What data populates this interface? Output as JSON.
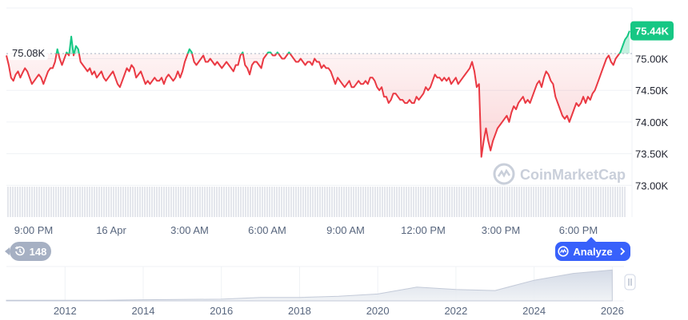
{
  "chart_data": {
    "type": "area",
    "y_axis": {
      "ticks": [
        "75.00K",
        "74.50K",
        "74.00K",
        "73.50K",
        "73.00K"
      ],
      "tick_values": [
        75000,
        74500,
        74000,
        73500,
        73000
      ],
      "range": [
        72500,
        75800
      ]
    },
    "x_axis": {
      "ticks": [
        "9:00 PM",
        "16 Apr",
        "3:00 AM",
        "6:00 AM",
        "9:00 AM",
        "12:00 PM",
        "3:00 PM",
        "6:00 PM"
      ]
    },
    "reference_value": 75080,
    "reference_label": "75.08K",
    "current_value_label": "75.44K",
    "colors": {
      "above": "#16c784",
      "below": "#ea3943",
      "current_badge": "#16c784",
      "reference_line": "#a6b0c3"
    },
    "series": [
      {
        "values": [
          75050,
          74900,
          74700,
          74650,
          74750,
          74800,
          74700,
          74780,
          74850,
          74800,
          74700,
          74600,
          74650,
          74700,
          74750,
          74700,
          74600,
          74700,
          74800,
          74850,
          74850,
          74950,
          75150,
          75000,
          74900,
          75000,
          75100,
          75050,
          75350,
          75050,
          75200,
          75150,
          74950,
          74900,
          74850,
          74800,
          74850,
          74750,
          74800,
          74700,
          74750,
          74800,
          74700,
          74650,
          74700,
          74750,
          74800,
          74700,
          74600,
          74550,
          74650,
          74750,
          74850,
          74800,
          74900,
          74850,
          74700,
          74750,
          74800,
          74700,
          74600,
          74650,
          74600,
          74650,
          74700,
          74650,
          74650,
          74700,
          74600,
          74700,
          74750,
          74700,
          74650,
          74700,
          74800,
          74700,
          74800,
          74950,
          75050,
          75150,
          75100,
          74950,
          74900,
          74950,
          75000,
          75050,
          74950,
          74950,
          75000,
          74950,
          74900,
          74950,
          74900,
          74850,
          74900,
          74950,
          74900,
          74850,
          74800,
          74900,
          74900,
          75050,
          75100,
          74900,
          74850,
          74750,
          74900,
          74950,
          74950,
          74900,
          74850,
          75000,
          75050,
          75100,
          75100,
          75050,
          75050,
          75100,
          75050,
          75000,
          75000,
          75050,
          75100,
          75050,
          75000,
          74950,
          74950,
          75000,
          74950,
          74900,
          74950,
          74950,
          74900,
          75000,
          74950,
          74950,
          74850,
          74900,
          74850,
          74850,
          74800,
          74700,
          74600,
          74700,
          74650,
          74600,
          74550,
          74600,
          74650,
          74550,
          74550,
          74600,
          74650,
          74600,
          74600,
          74650,
          74600,
          74700,
          74700,
          74650,
          74550,
          74500,
          74550,
          74400,
          74400,
          74300,
          74350,
          74450,
          74450,
          74400,
          74350,
          74350,
          74300,
          74300,
          74350,
          74300,
          74300,
          74400,
          74350,
          74400,
          74450,
          74550,
          74500,
          74550,
          74650,
          74750,
          74700,
          74700,
          74650,
          74700,
          74650,
          74700,
          74600,
          74650,
          74700,
          74600,
          74650,
          74700,
          74750,
          74800,
          74850,
          74950,
          74800,
          74550,
          74600,
          73450,
          73700,
          73900,
          73700,
          73550,
          73700,
          73800,
          73900,
          73950,
          74000,
          74050,
          74100,
          74000,
          74150,
          74250,
          74200,
          74300,
          74350,
          74400,
          74300,
          74350,
          74300,
          74400,
          74500,
          74600,
          74650,
          74550,
          74700,
          74800,
          74750,
          74650,
          74600,
          74400,
          74300,
          74200,
          74100,
          74050,
          74100,
          74000,
          74100,
          74200,
          74300,
          74250,
          74300,
          74400,
          74300,
          74400,
          74350,
          74450,
          74500,
          74600,
          74700,
          74800,
          74900,
          75000,
          75050,
          74950,
          74900,
          75000,
          75050,
          75100,
          75200,
          75300,
          75350,
          75440
        ]
      }
    ]
  },
  "watermark": {
    "text": "CoinMarketCap",
    "icon": "coinmarketcap-logo-icon"
  },
  "navigator": {
    "ticks": [
      "2012",
      "2014",
      "2016",
      "2018",
      "2020",
      "2022",
      "2024",
      "2026"
    ],
    "tick_values": [
      2012,
      2014,
      2016,
      2018,
      2020,
      2022,
      2024,
      2026
    ],
    "range": [
      2010.5,
      2026.3
    ],
    "trend": [
      [
        2010.5,
        0.5
      ],
      [
        2013,
        0.5
      ],
      [
        2014,
        1
      ],
      [
        2016,
        1.5
      ],
      [
        2017,
        3
      ],
      [
        2018,
        3
      ],
      [
        2019,
        4
      ],
      [
        2020,
        6
      ],
      [
        2021,
        12
      ],
      [
        2022,
        10
      ],
      [
        2023,
        9
      ],
      [
        2024,
        18
      ],
      [
        2025,
        24
      ],
      [
        2026,
        27
      ]
    ]
  },
  "controls": {
    "history_label": "148",
    "history_icon": "history-icon",
    "analyze_label": "Analyze",
    "analyze_icon": "coinmarketcap-logo-icon",
    "analyze_chevron": "chevron-right-icon",
    "navigator_handle": "drag-handle-icon"
  }
}
